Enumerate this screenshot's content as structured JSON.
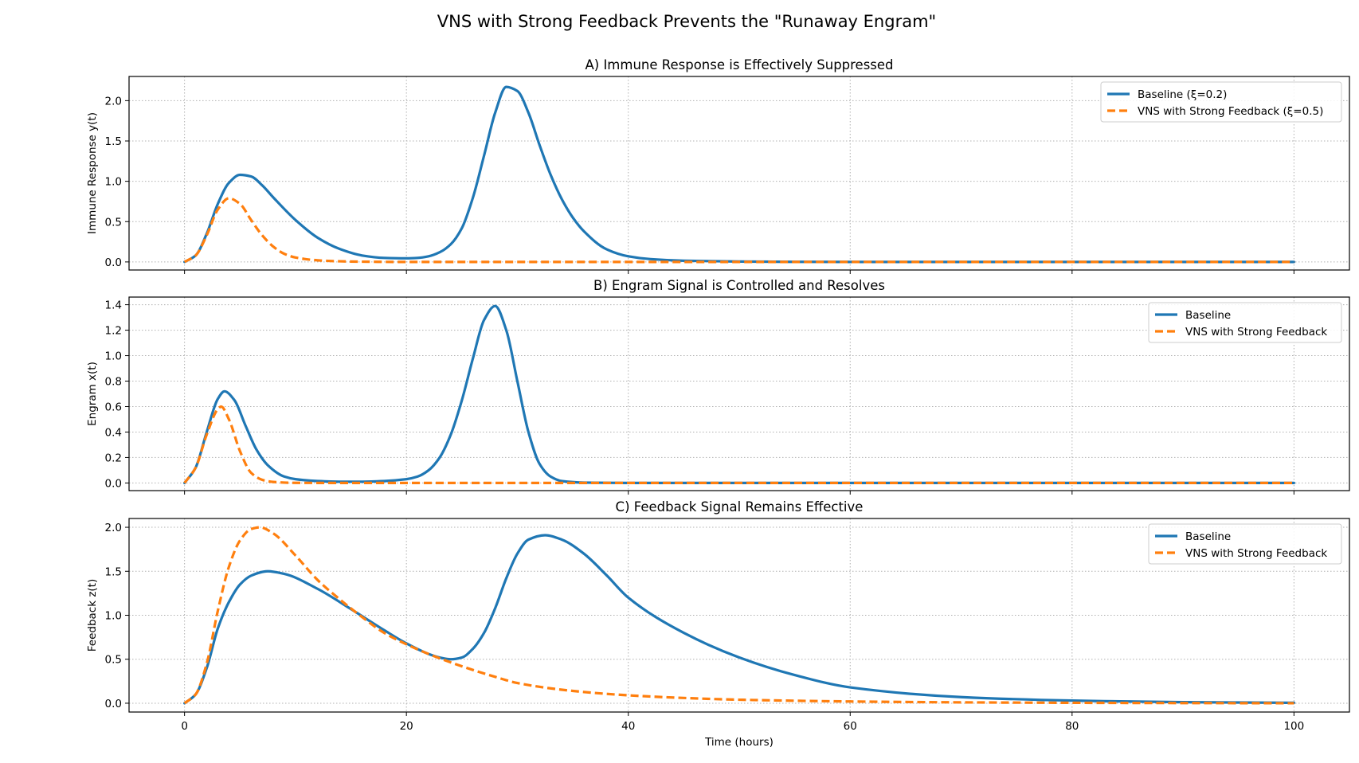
{
  "figure_title": "VNS with Strong Feedback Prevents the \"Runaway Engram\"",
  "colors": {
    "baseline": "#1f77b4",
    "vns": "#ff7f0e",
    "grid": "#b0b0b0"
  },
  "chart_data": [
    {
      "type": "line",
      "title": "A) Immune Response is Effectively Suppressed",
      "ylabel": "Immune Response y(t)",
      "xlabel": "",
      "xlim": [
        -5,
        105
      ],
      "ylim": [
        -0.1,
        2.3
      ],
      "xticks": [
        0,
        20,
        40,
        60,
        80,
        100
      ],
      "yticks": [
        0.0,
        0.5,
        1.0,
        1.5,
        2.0
      ],
      "ytick_labels": [
        "0.0",
        "0.5",
        "1.0",
        "1.5",
        "2.0"
      ],
      "show_xtick_labels": false,
      "grid": true,
      "legend_position": "upper right",
      "series": [
        {
          "name": "Baseline (ξ=0.2)",
          "style": "solid",
          "x": [
            0,
            1,
            2,
            3,
            4,
            5,
            6,
            7,
            8,
            10,
            12,
            14,
            16,
            18,
            20,
            21,
            22,
            23,
            24,
            25,
            26,
            27,
            28,
            29,
            30,
            31,
            32,
            33,
            34,
            35,
            36,
            38,
            40,
            42,
            45,
            50,
            60,
            80,
            100
          ],
          "y": [
            0.0,
            0.08,
            0.35,
            0.72,
            0.98,
            1.08,
            1.06,
            0.95,
            0.8,
            0.52,
            0.3,
            0.16,
            0.08,
            0.05,
            0.045,
            0.05,
            0.07,
            0.12,
            0.22,
            0.42,
            0.8,
            1.32,
            1.85,
            2.17,
            2.12,
            1.85,
            1.45,
            1.08,
            0.78,
            0.55,
            0.38,
            0.16,
            0.07,
            0.035,
            0.015,
            0.005,
            0.0,
            0.0,
            0.0
          ]
        },
        {
          "name": "VNS with Strong Feedback (ξ=0.5)",
          "style": "dashed",
          "x": [
            0,
            1,
            2,
            3,
            4,
            5,
            6,
            7,
            8,
            9,
            10,
            12,
            14,
            16,
            20,
            30,
            50,
            100
          ],
          "y": [
            0.0,
            0.08,
            0.33,
            0.65,
            0.79,
            0.72,
            0.52,
            0.33,
            0.19,
            0.1,
            0.055,
            0.02,
            0.008,
            0.003,
            0.0,
            0.0,
            0.0,
            0.0
          ]
        }
      ]
    },
    {
      "type": "line",
      "title": "B) Engram Signal is Controlled and Resolves",
      "ylabel": "Engram x(t)",
      "xlabel": "",
      "xlim": [
        -5,
        105
      ],
      "ylim": [
        -0.06,
        1.46
      ],
      "xticks": [
        0,
        20,
        40,
        60,
        80,
        100
      ],
      "yticks": [
        0.0,
        0.2,
        0.4,
        0.6,
        0.8,
        1.0,
        1.2,
        1.4
      ],
      "ytick_labels": [
        "0.0",
        "0.2",
        "0.4",
        "0.6",
        "0.8",
        "1.0",
        "1.2",
        "1.4"
      ],
      "show_xtick_labels": false,
      "grid": true,
      "legend_position": "upper right",
      "series": [
        {
          "name": "Baseline",
          "style": "solid",
          "x": [
            0,
            1,
            2,
            3,
            3.6,
            4.5,
            5.5,
            6.5,
            7.5,
            9,
            10,
            12,
            14,
            16,
            18,
            20,
            21,
            22,
            23,
            24,
            25,
            26,
            27,
            28,
            29,
            30,
            31,
            32,
            33,
            34,
            36,
            40,
            50,
            100
          ],
          "y": [
            0.0,
            0.12,
            0.4,
            0.66,
            0.72,
            0.65,
            0.45,
            0.26,
            0.14,
            0.05,
            0.03,
            0.015,
            0.01,
            0.01,
            0.015,
            0.03,
            0.05,
            0.1,
            0.2,
            0.38,
            0.65,
            0.98,
            1.28,
            1.39,
            1.2,
            0.8,
            0.4,
            0.15,
            0.05,
            0.015,
            0.003,
            0.0,
            0.0,
            0.0
          ]
        },
        {
          "name": "VNS with Strong Feedback",
          "style": "dashed",
          "x": [
            0,
            1,
            2,
            3,
            3.3,
            4,
            5,
            6,
            7,
            8,
            10,
            15,
            100
          ],
          "y": [
            0.0,
            0.12,
            0.38,
            0.58,
            0.6,
            0.5,
            0.25,
            0.08,
            0.025,
            0.008,
            0.001,
            0.0,
            0.0
          ]
        }
      ]
    },
    {
      "type": "line",
      "title": "C) Feedback Signal Remains Effective",
      "ylabel": "Feedback z(t)",
      "xlabel": "Time (hours)",
      "xlim": [
        -5,
        105
      ],
      "ylim": [
        -0.1,
        2.1
      ],
      "xticks": [
        0,
        20,
        40,
        60,
        80,
        100
      ],
      "xtick_labels": [
        "0",
        "20",
        "40",
        "60",
        "80",
        "100"
      ],
      "yticks": [
        0.0,
        0.5,
        1.0,
        1.5,
        2.0
      ],
      "ytick_labels": [
        "0.0",
        "0.5",
        "1.0",
        "1.5",
        "2.0"
      ],
      "show_xtick_labels": true,
      "grid": true,
      "legend_position": "upper right",
      "series": [
        {
          "name": "Baseline",
          "style": "solid",
          "x": [
            0,
            1,
            2,
            3,
            4,
            5,
            6,
            7.5,
            9,
            12,
            15,
            18,
            20,
            22,
            23,
            24,
            25,
            26,
            27,
            28,
            29,
            30,
            31,
            32.5,
            34,
            36,
            38,
            40,
            45,
            50,
            55,
            60,
            70,
            80,
            90,
            100
          ],
          "y": [
            0.0,
            0.1,
            0.4,
            0.85,
            1.15,
            1.35,
            1.45,
            1.5,
            1.47,
            1.3,
            1.07,
            0.83,
            0.68,
            0.56,
            0.52,
            0.5,
            0.52,
            0.62,
            0.8,
            1.08,
            1.42,
            1.7,
            1.86,
            1.91,
            1.86,
            1.7,
            1.46,
            1.2,
            0.8,
            0.52,
            0.32,
            0.18,
            0.07,
            0.03,
            0.012,
            0.005
          ]
        },
        {
          "name": "VNS with Strong Feedback",
          "style": "dashed",
          "x": [
            0,
            1,
            2,
            3,
            4,
            5,
            6,
            6.8,
            8,
            10,
            12,
            14,
            16,
            18,
            20,
            22,
            25,
            28,
            30,
            35,
            40,
            45,
            50,
            60,
            70,
            80,
            90,
            100
          ],
          "y": [
            0.0,
            0.1,
            0.45,
            1.05,
            1.55,
            1.85,
            1.98,
            2.0,
            1.93,
            1.68,
            1.4,
            1.18,
            0.98,
            0.8,
            0.67,
            0.56,
            0.42,
            0.3,
            0.23,
            0.14,
            0.09,
            0.06,
            0.04,
            0.02,
            0.01,
            0.005,
            0.002,
            0.0
          ]
        }
      ]
    }
  ]
}
